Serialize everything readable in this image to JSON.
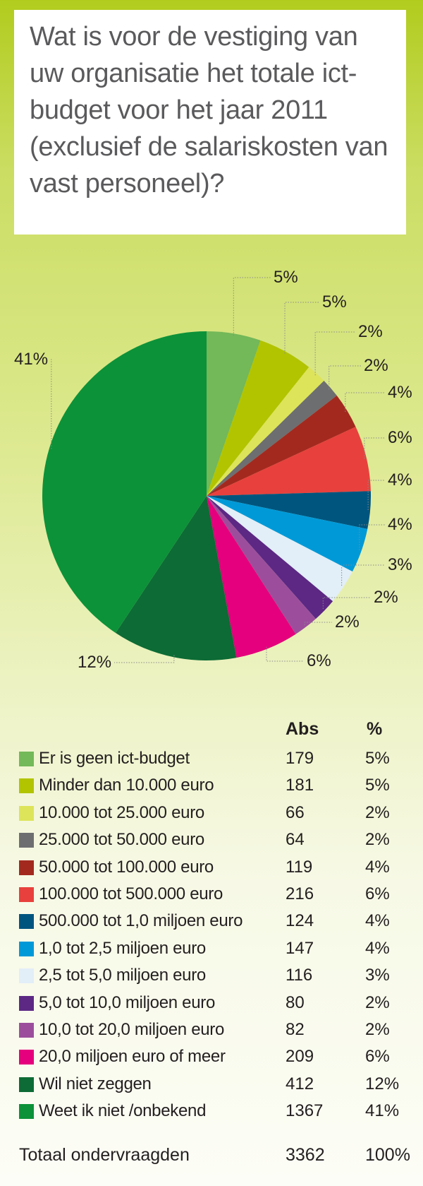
{
  "title": "Wat is voor de vestiging van uw organisatie het totale ict-budget voor het jaar 2011 (exclusief de salariskosten van vast personeel)?",
  "chart_data": {
    "type": "pie",
    "headers": {
      "abs": "Abs",
      "pct": "%"
    },
    "slices": [
      {
        "label": "Er is geen ict-budget",
        "abs": 179,
        "pct": "5%",
        "color": "#73b859"
      },
      {
        "label": "Minder dan 10.000 euro",
        "abs": 181,
        "pct": "5%",
        "color": "#b2c400"
      },
      {
        "label": "10.000 tot 25.000 euro",
        "abs": 66,
        "pct": "2%",
        "color": "#dde45a"
      },
      {
        "label": "25.000 tot 50.000 euro",
        "abs": 64,
        "pct": "2%",
        "color": "#6d6e70"
      },
      {
        "label": "50.000 tot 100.000 euro",
        "abs": 119,
        "pct": "4%",
        "color": "#a3291f"
      },
      {
        "label": "100.000 tot 500.000 euro",
        "abs": 216,
        "pct": "6%",
        "color": "#e8403d"
      },
      {
        "label": "500.000 tot 1,0 miljoen euro",
        "abs": 124,
        "pct": "4%",
        "color": "#00557f"
      },
      {
        "label": "1,0 tot 2,5 miljoen euro",
        "abs": 147,
        "pct": "4%",
        "color": "#0099d8"
      },
      {
        "label": "2,5 tot 5,0 miljoen euro",
        "abs": 116,
        "pct": "3%",
        "color": "#e2eef8"
      },
      {
        "label": "5,0 tot 10,0 miljoen euro",
        "abs": 80,
        "pct": "2%",
        "color": "#5c2884"
      },
      {
        "label": "10,0 tot 20,0 miljoen euro",
        "abs": 82,
        "pct": "2%",
        "color": "#9c4e9c"
      },
      {
        "label": "20,0 miljoen euro of meer",
        "abs": 209,
        "pct": "6%",
        "color": "#e5007d"
      },
      {
        "label": "Wil niet zeggen",
        "abs": 412,
        "pct": "12%",
        "color": "#0d6b35"
      },
      {
        "label": "Weet ik niet /onbekend",
        "abs": 1367,
        "pct": "41%",
        "color": "#0c9239"
      }
    ],
    "total": {
      "label": "Totaal ondervraagden",
      "abs": 3362,
      "pct": "100%"
    }
  }
}
